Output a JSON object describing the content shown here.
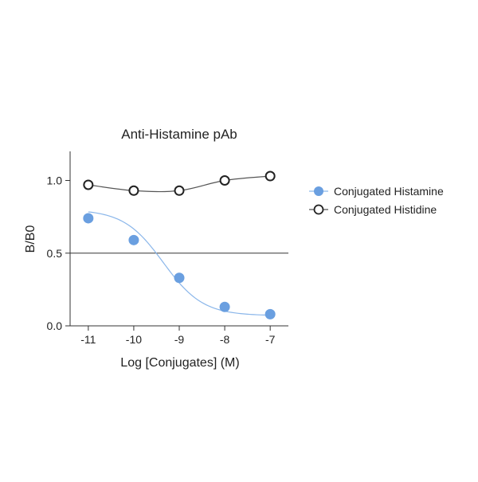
{
  "chart_data": {
    "type": "scatter",
    "title": "Anti-Histamine pAb",
    "xlabel": "Log [Conjugates] (M)",
    "ylabel": "B/B0",
    "xlim": [
      -11.4,
      -6.6
    ],
    "ylim": [
      0.0,
      1.2
    ],
    "x_ticks": [
      -11,
      -10,
      -9,
      -8,
      -7
    ],
    "x_tick_labels": [
      "-11",
      "-10",
      "-9",
      "-8",
      "-7"
    ],
    "y_ticks": [
      0.0,
      0.5,
      1.0
    ],
    "y_tick_labels": [
      "0.0",
      "0.5",
      "1.0"
    ],
    "reference_line": {
      "y": 0.5
    },
    "grid": false,
    "legend_position": "right",
    "series": [
      {
        "name": "Conjugated Histamine",
        "marker": "filled-circle",
        "color": "#6a9fe0",
        "line_color": "#8ab6ea",
        "x": [
          -11,
          -10,
          -9,
          -8,
          -7
        ],
        "y": [
          0.74,
          0.59,
          0.33,
          0.13,
          0.08
        ],
        "fit": {
          "model": "4PL",
          "top": 0.8,
          "bottom": 0.07,
          "log_ic50": -9.35,
          "hill": 1.0
        }
      },
      {
        "name": "Conjugated Histidine",
        "marker": "open-circle",
        "color": "#222222",
        "line_color": "#555555",
        "x": [
          -11,
          -10,
          -9,
          -8,
          -7
        ],
        "y": [
          0.97,
          0.93,
          0.93,
          1.0,
          1.03
        ]
      }
    ]
  }
}
